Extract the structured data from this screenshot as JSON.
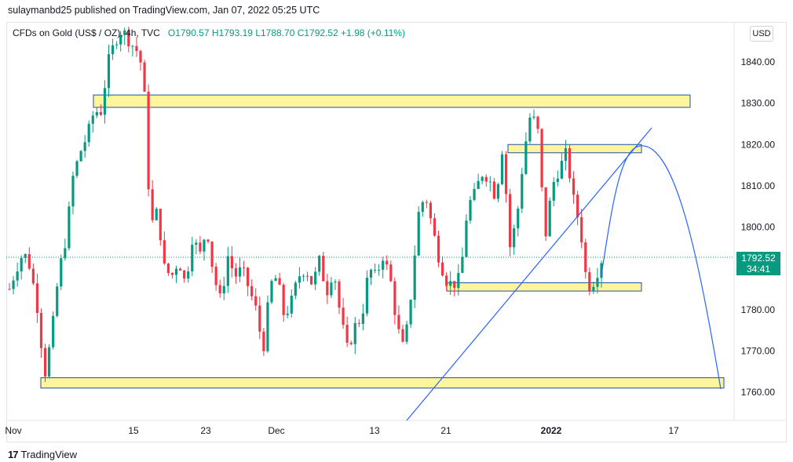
{
  "header": {
    "published": "sulaymanbd25 published on TradingView.com, Jan 07, 2022 05:25 UTC"
  },
  "legend": {
    "symbol": "CFDs on Gold (US$ / OZ), 4h, TVC",
    "open": "O1790.57",
    "high": "H1793.19",
    "low": "L1788.70",
    "close": "C1792.52",
    "change": "+1.98 (+0.11%)"
  },
  "currency_button": "USD",
  "last_price": {
    "price": "1792.52",
    "countdown": "34:41"
  },
  "footer": {
    "brand": "TradingView",
    "logo_icon": "tradingview-logo-icon"
  },
  "colors": {
    "up": "#089981",
    "down": "#f23645",
    "zone_fill": "#fff59d",
    "zone_border": "#1e4fa8",
    "line": "#2962ff"
  },
  "chart_data": {
    "type": "candlestick",
    "y_ticks": [
      "1840.00",
      "1830.00",
      "1820.00",
      "1810.00",
      "1800.00",
      "1790.00",
      "1780.00",
      "1770.00",
      "1760.00"
    ],
    "x_ticks": [
      "Nov",
      "15",
      "23",
      "Dec",
      "13",
      "21",
      "2022",
      "17"
    ],
    "ylim": [
      1752,
      1848
    ],
    "current_price": 1792.52,
    "zones": [
      {
        "label": "resistance-1830",
        "low": 1829,
        "high": 1832
      },
      {
        "label": "resistance-1819",
        "low": 1818,
        "high": 1820
      },
      {
        "label": "support-1786",
        "low": 1784.5,
        "high": 1786.5
      },
      {
        "label": "support-1762",
        "low": 1761,
        "high": 1763.5
      }
    ],
    "close_path": [
      1785,
      1790,
      1794,
      1790,
      1780,
      1764,
      1774,
      1789,
      1797,
      1812,
      1818,
      1822,
      1828,
      1828,
      1840,
      1845,
      1848,
      1845,
      1843,
      1838,
      1800,
      1804,
      1790,
      1788,
      1792,
      1786,
      1798,
      1793,
      1800,
      1788,
      1782,
      1793,
      1788,
      1790,
      1785,
      1780,
      1770,
      1786,
      1788,
      1778,
      1782,
      1788,
      1790,
      1786,
      1792,
      1784,
      1790,
      1778,
      1770,
      1776,
      1778,
      1790,
      1788,
      1793,
      1788,
      1776,
      1770,
      1784,
      1803,
      1808,
      1800,
      1792,
      1787,
      1786,
      1788,
      1805,
      1808,
      1813,
      1812,
      1807,
      1820,
      1795,
      1802,
      1818,
      1828,
      1823,
      1797,
      1810,
      1814,
      1818,
      1807,
      1800,
      1785,
      1787,
      1792
    ],
    "annotations": [
      "trendline",
      "projection-curve"
    ]
  }
}
